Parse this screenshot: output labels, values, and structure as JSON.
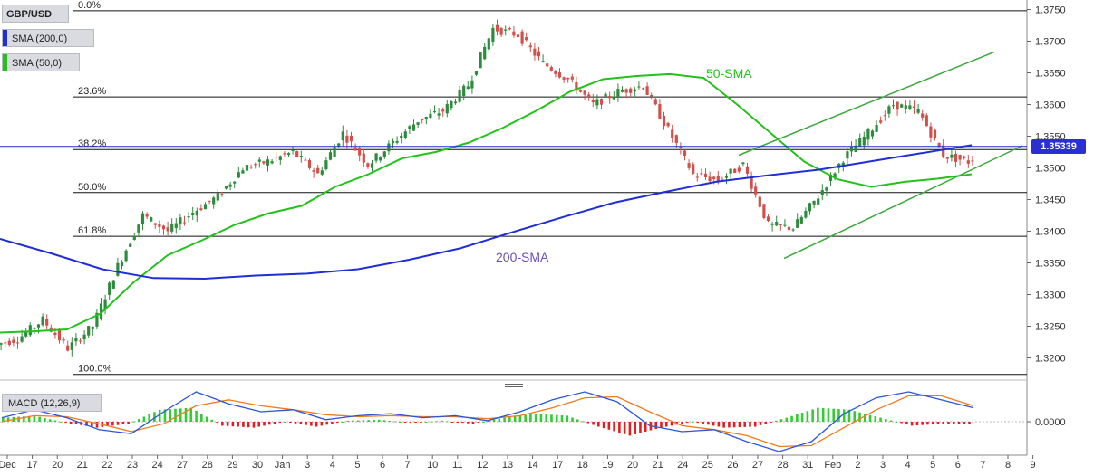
{
  "legend": {
    "symbol": "GBP/USD",
    "sma200": "SMA (200,0)",
    "sma50": "SMA (50,0)",
    "macd": "MACD (12,26,9)"
  },
  "colors": {
    "sma200": "#1f2ed6",
    "sma50": "#22c21a",
    "trendline": "#3aa83a",
    "bull": "#2e8b3d",
    "bear": "#d0504c",
    "macd_line": "#2b55d9",
    "signal_line": "#f07a1a",
    "hist_pos": "#33cc33",
    "hist_neg": "#e02020",
    "price_tag": "#2a2fd3",
    "grid": "#000000"
  },
  "price_tag": "1.35339",
  "chart_data": [
    {
      "type": "candlestick",
      "title": "GBP/USD",
      "ylim": [
        1.3165,
        1.3765
      ],
      "y_ticks": [
        "1.3750",
        "1.3700",
        "1.3650",
        "1.3600",
        "1.3550",
        "1.3500",
        "1.3450",
        "1.3400",
        "1.3350",
        "1.3300",
        "1.3250",
        "1.3200"
      ],
      "y_tick_values": [
        1.375,
        1.37,
        1.365,
        1.36,
        1.355,
        1.35,
        1.345,
        1.34,
        1.335,
        1.33,
        1.325,
        1.32
      ],
      "x_labels": [
        "Dec",
        "17",
        "20",
        "21",
        "22",
        "23",
        "24",
        "27",
        "28",
        "29",
        "30",
        "Jan",
        "3",
        "4",
        "5",
        "6",
        "7",
        "10",
        "11",
        "12",
        "13",
        "14",
        "17",
        "18",
        "19",
        "20",
        "21",
        "24",
        "25",
        "26",
        "27",
        "28",
        "31",
        "Feb",
        "2",
        "3",
        "4",
        "5",
        "6",
        "7",
        "8",
        "9"
      ],
      "sessions": [
        "Dec",
        "17",
        "20",
        "21",
        "22",
        "23",
        "24",
        "27",
        "28",
        "29",
        "30",
        "Jan",
        "3",
        "4",
        "5",
        "6",
        "7",
        "10",
        "11",
        "12",
        "13",
        "14",
        "17",
        "18",
        "19",
        "20",
        "21",
        "24",
        "25",
        "26",
        "27",
        "28",
        "31",
        "Feb",
        "2",
        "3",
        "4",
        "5",
        "6",
        "7"
      ],
      "session_close": [
        1.323,
        1.326,
        1.3215,
        1.325,
        1.3345,
        1.3425,
        1.34,
        1.343,
        1.3455,
        1.35,
        1.351,
        1.3525,
        1.349,
        1.3555,
        1.3505,
        1.354,
        1.3575,
        1.359,
        1.363,
        1.372,
        1.371,
        1.3665,
        1.364,
        1.36,
        1.362,
        1.363,
        1.356,
        1.349,
        1.348,
        1.3505,
        1.341,
        1.3405,
        1.3455,
        1.3515,
        1.3555,
        1.36,
        1.359,
        1.352,
        1.351,
        1.3534
      ],
      "fibonacci": [
        {
          "label": "0.0%",
          "value": 1.3748
        },
        {
          "label": "23.6%",
          "value": 1.3612
        },
        {
          "label": "38.2%",
          "value": 1.3529
        },
        {
          "label": "50.0%",
          "value": 1.3461
        },
        {
          "label": "61.8%",
          "value": 1.3392
        },
        {
          "label": "100.0%",
          "value": 1.3174
        }
      ],
      "series": [
        {
          "name": "50-SMA",
          "values": [
            1.324,
            1.3242,
            1.3245,
            1.327,
            1.332,
            1.3362,
            1.3385,
            1.341,
            1.3428,
            1.344,
            1.347,
            1.349,
            1.3515,
            1.3525,
            1.354,
            1.3563,
            1.359,
            1.362,
            1.364,
            1.3645,
            1.3648,
            1.3642,
            1.36,
            1.3555,
            1.351,
            1.3482,
            1.347,
            1.3478,
            1.3483,
            1.349
          ]
        },
        {
          "name": "200-SMA",
          "values": [
            1.3388,
            1.3365,
            1.334,
            1.3326,
            1.3325,
            1.333,
            1.3333,
            1.334,
            1.3355,
            1.3373,
            1.3398,
            1.3422,
            1.3445,
            1.3462,
            1.3478,
            1.3488,
            1.3497,
            1.351,
            1.3523,
            1.3536
          ]
        }
      ],
      "annotations": [
        "50-SMA",
        "200-SMA"
      ],
      "current_price": 1.35339
    },
    {
      "type": "line",
      "title": "MACD (12,26,9)",
      "y_ticks": [
        "0.0000"
      ],
      "series": [
        {
          "name": "MACD",
          "values": [
            0.0004,
            0.0012,
            0.0004,
            -0.0008,
            -0.0012,
            0.001,
            0.003,
            0.0018,
            0.001,
            0.0012,
            0.0002,
            0.0006,
            0.0008,
            0.0004,
            0.0006,
            0.0001,
            0.001,
            0.0022,
            0.003,
            0.002,
            -0.0004,
            -0.001,
            -0.0008,
            -0.002,
            -0.003,
            -0.002,
            0.0008,
            0.0024,
            0.003,
            0.0022,
            0.0014
          ]
        },
        {
          "name": "Signal",
          "values": [
            0.0,
            0.0006,
            0.0005,
            -0.0002,
            -0.001,
            -0.0002,
            0.0016,
            0.0022,
            0.0016,
            0.0012,
            0.0007,
            0.0005,
            0.0006,
            0.0005,
            0.0005,
            0.0003,
            0.0006,
            0.0014,
            0.0024,
            0.0025,
            0.001,
            -0.0004,
            -0.0008,
            -0.0014,
            -0.0025,
            -0.0024,
            -0.0006,
            0.0012,
            0.0026,
            0.0026,
            0.0016
          ]
        },
        {
          "name": "Histogram",
          "values": [
            0.0004,
            0.0006,
            -0.0001,
            -0.0006,
            -0.0002,
            0.0012,
            0.0014,
            -0.0004,
            -0.0006,
            0.0,
            -0.0005,
            0.0001,
            0.0002,
            -0.0001,
            0.0001,
            -0.0002,
            0.0004,
            0.0008,
            0.0006,
            -0.0005,
            -0.0014,
            -0.0006,
            0.0,
            -0.0006,
            -0.0005,
            0.0004,
            0.0014,
            0.0012,
            0.0004,
            -0.0004,
            -0.0002
          ]
        }
      ]
    }
  ]
}
